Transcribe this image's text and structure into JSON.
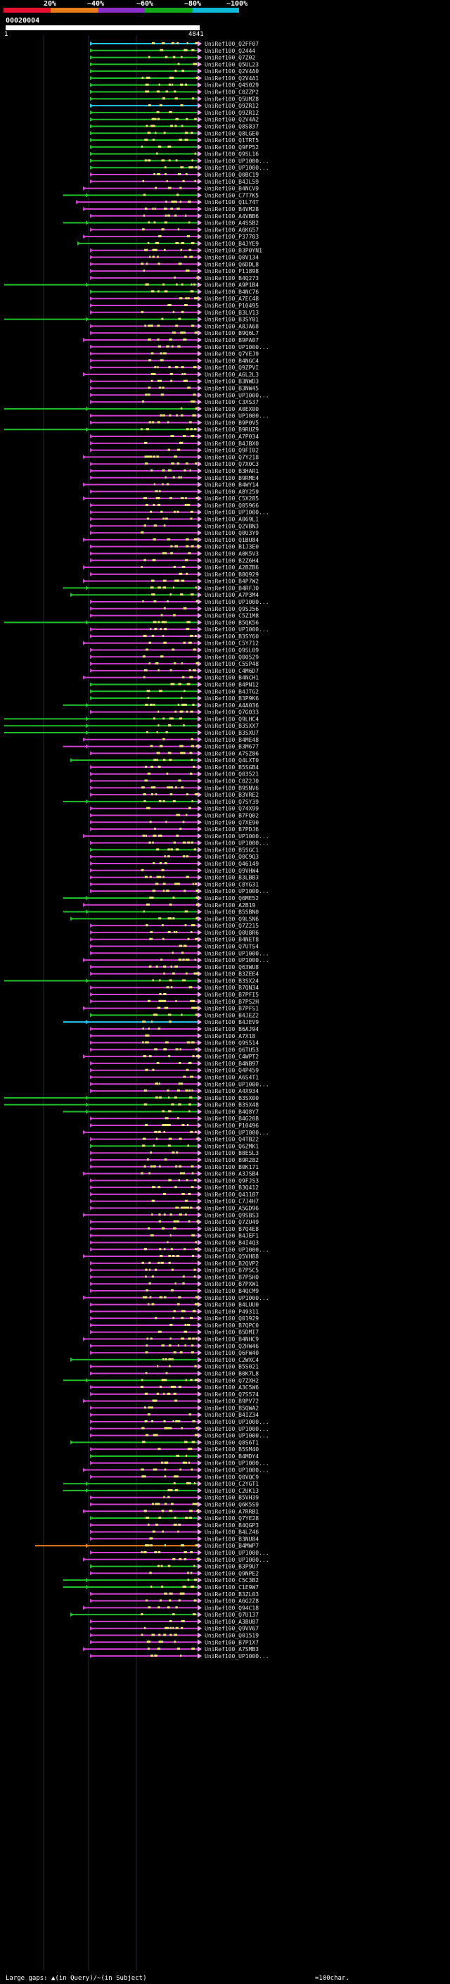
{
  "scale": {
    "labels": [
      "20%",
      "~40%",
      "~60%",
      "~80%",
      "~100%"
    ],
    "colors": [
      "#e8112d",
      "#e87b1a",
      "#8a2fc8",
      "#12a81a",
      "#10b8d8"
    ]
  },
  "query": {
    "id": "00020004",
    "start": "1",
    "end": "4841"
  },
  "colors": {
    "magenta": "#d040d0",
    "green": "#1fbf2a",
    "cyan": "#22c8f0",
    "orange": "#f0801a",
    "yellow": "#e8e870",
    "pink": "#f0a0f0"
  },
  "hits": [
    {
      "id": "UniRef100_Q2FF07",
      "c": "c",
      "s": 128
    },
    {
      "id": "UniRef100_Q2444",
      "c": "g",
      "s": 128
    },
    {
      "id": "UniRef100_Q7Z02",
      "c": "g",
      "s": 128
    },
    {
      "id": "UniRef100_Q5UL23",
      "c": "g",
      "s": 128
    },
    {
      "id": "UniRef100_Q2V4A0",
      "c": "g",
      "s": 128
    },
    {
      "id": "UniRef100_Q2V4A1",
      "c": "g",
      "s": 128
    },
    {
      "id": "UniRef100_Q4S029",
      "c": "g",
      "s": 128
    },
    {
      "id": "UniRef100_C0ZZP2",
      "c": "g",
      "s": 128
    },
    {
      "id": "UniRef100_Q5UMZ8",
      "c": "g",
      "s": 128
    },
    {
      "id": "UniRef100_Q9ZR12",
      "c": "c",
      "s": 128
    },
    {
      "id": "UniRef100_Q9ZR12",
      "c": "g",
      "s": 128
    },
    {
      "id": "UniRef100_Q2V4A2",
      "c": "g",
      "s": 128
    },
    {
      "id": "UniRef100_Q8S837",
      "c": "g",
      "s": 128
    },
    {
      "id": "UniRef100_Q8LGE0",
      "c": "g",
      "s": 128
    },
    {
      "id": "UniRef100_Q1TRT5",
      "c": "g",
      "s": 128
    },
    {
      "id": "UniRef100_Q9FP52",
      "c": "g",
      "s": 128
    },
    {
      "id": "UniRef100_Q9SL16",
      "c": "g",
      "s": 128
    },
    {
      "id": "UniRef100_UP1000...",
      "c": "g",
      "s": 128
    },
    {
      "id": "UniRef100_UP1000...",
      "c": "g",
      "s": 128
    },
    {
      "id": "UniRef100_Q0BC19",
      "c": "m",
      "s": 128
    },
    {
      "id": "UniRef100_B4JL59",
      "c": "m",
      "s": 128
    },
    {
      "id": "UniRef100_B4NCV9",
      "c": "m",
      "s": 118
    },
    {
      "id": "UniRef100_C7T7K5",
      "c": "g",
      "s": 90
    },
    {
      "id": "UniRef100_Q1L74T",
      "c": "m",
      "s": 108
    },
    {
      "id": "UniRef100_B4VM28",
      "c": "m",
      "s": 118
    },
    {
      "id": "UniRef100_A4VBB6",
      "c": "m",
      "s": 128
    },
    {
      "id": "UniRef100_A4SSB2",
      "c": "g",
      "s": 90
    },
    {
      "id": "UniRef100_A6KG57",
      "c": "m",
      "s": 128
    },
    {
      "id": "UniRef100_P37703",
      "c": "m",
      "s": 118
    },
    {
      "id": "UniRef100_B4JYE9",
      "c": "g",
      "s": 110
    },
    {
      "id": "UniRef100_B3P0YN1",
      "c": "m",
      "s": 128
    },
    {
      "id": "UniRef100_Q0V134",
      "c": "m",
      "s": 128
    },
    {
      "id": "UniRef100_Q6DDL8",
      "c": "m",
      "s": 128
    },
    {
      "id": "UniRef100_P11898",
      "c": "m",
      "s": 128
    },
    {
      "id": "UniRef100_B4Q273",
      "c": "m",
      "s": 128
    },
    {
      "id": "UniRef100_A9P1B4",
      "c": "g",
      "s": 6
    },
    {
      "id": "UniRef100_B4NC76",
      "c": "g",
      "s": 128
    },
    {
      "id": "UniRef100_A7EC48",
      "c": "m",
      "s": 128
    },
    {
      "id": "UniRef100_P10495",
      "c": "m",
      "s": 128
    },
    {
      "id": "UniRef100_B3LV13",
      "c": "m",
      "s": 128
    },
    {
      "id": "UniRef100_B3SY01",
      "c": "g",
      "s": 6
    },
    {
      "id": "UniRef100_A8JA68",
      "c": "m",
      "s": 128
    },
    {
      "id": "UniRef100_B9Q6L7",
      "c": "m",
      "s": 128
    },
    {
      "id": "UniRef100_B9PA07",
      "c": "m",
      "s": 118
    },
    {
      "id": "UniRef100_UP1000...",
      "c": "m",
      "s": 128
    },
    {
      "id": "UniRef100_Q7VEJ9",
      "c": "m",
      "s": 128
    },
    {
      "id": "UniRef100_B4NGC4",
      "c": "m",
      "s": 128
    },
    {
      "id": "UniRef100_Q9ZPVI",
      "c": "m",
      "s": 128
    },
    {
      "id": "UniRef100_A6L2L3",
      "c": "m",
      "s": 118
    },
    {
      "id": "UniRef100_B3NWD3",
      "c": "m",
      "s": 128
    },
    {
      "id": "UniRef100_B3NW45",
      "c": "m",
      "s": 128
    },
    {
      "id": "UniRef100_UP1000...",
      "c": "m",
      "s": 128
    },
    {
      "id": "UniRef100_C3XS37",
      "c": "m",
      "s": 128
    },
    {
      "id": "UniRef100_A0EX00",
      "c": "g",
      "s": 6
    },
    {
      "id": "UniRef100_UP1000...",
      "c": "m",
      "s": 128
    },
    {
      "id": "UniRef100_B9P0V5",
      "c": "m",
      "s": 128
    },
    {
      "id": "UniRef100_B9RUZ9",
      "c": "g",
      "s": 6
    },
    {
      "id": "UniRef100_A7P034",
      "c": "m",
      "s": 128
    },
    {
      "id": "UniRef100_B4JBX0",
      "c": "m",
      "s": 128
    },
    {
      "id": "UniRef100_Q9FI02",
      "c": "m",
      "s": 128
    },
    {
      "id": "UniRef100_Q7Y218",
      "c": "m",
      "s": 118
    },
    {
      "id": "UniRef100_Q7X0C3",
      "c": "m",
      "s": 128
    },
    {
      "id": "UniRef100_B3HAR1",
      "c": "m",
      "s": 128
    },
    {
      "id": "UniRef100_B9RME4",
      "c": "m",
      "s": 128
    },
    {
      "id": "UniRef100_B4WY14",
      "c": "m",
      "s": 118
    },
    {
      "id": "UniRef100_A8Y259",
      "c": "m",
      "s": 128
    },
    {
      "id": "UniRef100_C5X285",
      "c": "m",
      "s": 118
    },
    {
      "id": "UniRef100_Q05966",
      "c": "m",
      "s": 128
    },
    {
      "id": "UniRef100_UP1000...",
      "c": "m",
      "s": 128
    },
    {
      "id": "UniRef100_A069L1",
      "c": "m",
      "s": 128
    },
    {
      "id": "UniRef100_Q2VBN3",
      "c": "m",
      "s": 128
    },
    {
      "id": "UniRef100_Q0U3Y9",
      "c": "m",
      "s": 128
    },
    {
      "id": "UniRef100_Q1BU84",
      "c": "m",
      "s": 118
    },
    {
      "id": "UniRef100_B1J3E0",
      "c": "m",
      "s": 128
    },
    {
      "id": "UniRef100_A0K5V3",
      "c": "m",
      "s": 128
    },
    {
      "id": "UniRef100_B2Z6H4",
      "c": "m",
      "s": 128
    },
    {
      "id": "UniRef100_A2BZB6",
      "c": "m",
      "s": 118
    },
    {
      "id": "UniRef100_B8Q929",
      "c": "m",
      "s": 128
    },
    {
      "id": "UniRef100_B4P7W2",
      "c": "m",
      "s": 118
    },
    {
      "id": "UniRef100_B4RFJ0",
      "c": "g",
      "s": 90
    },
    {
      "id": "UniRef100_A7P3M4",
      "c": "g",
      "s": 100
    },
    {
      "id": "UniRef100_UP1000...",
      "c": "m",
      "s": 128
    },
    {
      "id": "UniRef100_Q9SJ56",
      "c": "m",
      "s": 128
    },
    {
      "id": "UniRef100_C5Z1M8",
      "c": "m",
      "s": 128
    },
    {
      "id": "UniRef100_B5QK56",
      "c": "g",
      "s": 6
    },
    {
      "id": "UniRef100_UP1000...",
      "c": "m",
      "s": 128
    },
    {
      "id": "UniRef100_B3SY60",
      "c": "m",
      "s": 128
    },
    {
      "id": "UniRef100_C5Y712",
      "c": "m",
      "s": 118
    },
    {
      "id": "UniRef100_Q9SL09",
      "c": "m",
      "s": 128
    },
    {
      "id": "UniRef100_Q00529",
      "c": "m",
      "s": 128
    },
    {
      "id": "UniRef100_C5SP48",
      "c": "m",
      "s": 128
    },
    {
      "id": "UniRef100_C4M6D7",
      "c": "m",
      "s": 128
    },
    {
      "id": "UniRef100_B4NCH1",
      "c": "m",
      "s": 118
    },
    {
      "id": "UniRef100_B4PN12",
      "c": "g",
      "s": 128
    },
    {
      "id": "UniRef100_B4JTG2",
      "c": "g",
      "s": 128
    },
    {
      "id": "UniRef100_B3P9K6",
      "c": "g",
      "s": 128
    },
    {
      "id": "UniRef100_A4A036",
      "c": "g",
      "s": 90
    },
    {
      "id": "UniRef100_Q7G033",
      "c": "m",
      "s": 128
    },
    {
      "id": "UniRef100_Q9LHC4",
      "c": "g",
      "s": 6
    },
    {
      "id": "UniRef100_B3SXX7",
      "c": "g",
      "s": 6
    },
    {
      "id": "UniRef100_B3SXU7",
      "c": "g",
      "s": 6
    },
    {
      "id": "UniRef100_B4ME48",
      "c": "m",
      "s": 118
    },
    {
      "id": "UniRef100_B3M677",
      "c": "m",
      "s": 90
    },
    {
      "id": "UniRef100_A7SZ86",
      "c": "m",
      "s": 128
    },
    {
      "id": "UniRef100_Q4LXT0",
      "c": "g",
      "s": 100
    },
    {
      "id": "UniRef100_B5SGB4",
      "c": "m",
      "s": 128
    },
    {
      "id": "UniRef100_Q03521",
      "c": "m",
      "s": 128
    },
    {
      "id": "UniRef100_C0Z2J0",
      "c": "m",
      "s": 128
    },
    {
      "id": "UniRef100_B9SNV6",
      "c": "m",
      "s": 128
    },
    {
      "id": "UniRef100_B3VRE2",
      "c": "m",
      "s": 128
    },
    {
      "id": "UniRef100_Q7SY39",
      "c": "g",
      "s": 90
    },
    {
      "id": "UniRef100_Q74X99",
      "c": "m",
      "s": 128
    },
    {
      "id": "UniRef100_B7FQ02",
      "c": "m",
      "s": 128
    },
    {
      "id": "UniRef100_Q7XE90",
      "c": "m",
      "s": 128
    },
    {
      "id": "UniRef100_B7PDJ6",
      "c": "m",
      "s": 128
    },
    {
      "id": "UniRef100_UP1000...",
      "c": "m",
      "s": 118
    },
    {
      "id": "UniRef100_UP1000...",
      "c": "m",
      "s": 128
    },
    {
      "id": "UniRef100_B5SGC1",
      "c": "g",
      "s": 128
    },
    {
      "id": "UniRef100_Q0C9Q3",
      "c": "m",
      "s": 128
    },
    {
      "id": "UniRef100_Q46149",
      "c": "m",
      "s": 128
    },
    {
      "id": "UniRef100_Q9VHW4",
      "c": "m",
      "s": 128
    },
    {
      "id": "UniRef100_B3LBB3",
      "c": "m",
      "s": 128
    },
    {
      "id": "UniRef100_C8YG31",
      "c": "m",
      "s": 128
    },
    {
      "id": "UniRef100_UP1000...",
      "c": "m",
      "s": 128
    },
    {
      "id": "UniRef100_Q6ME52",
      "c": "g",
      "s": 90
    },
    {
      "id": "UniRef100_A2B19",
      "c": "m",
      "s": 118
    },
    {
      "id": "UniRef100_B5SBN0",
      "c": "g",
      "s": 90
    },
    {
      "id": "UniRef100_Q9LSN6",
      "c": "g",
      "s": 100
    },
    {
      "id": "UniRef100_Q7Z215",
      "c": "m",
      "s": 128
    },
    {
      "id": "UniRef100_Q0U8R6",
      "c": "m",
      "s": 128
    },
    {
      "id": "UniRef100_B4NET8",
      "c": "m",
      "s": 128
    },
    {
      "id": "UniRef100_Q7UTS4",
      "c": "m",
      "s": 128
    },
    {
      "id": "UniRef100_UP1000...",
      "c": "m",
      "s": 128
    },
    {
      "id": "UniRef100_UP1000...",
      "c": "m",
      "s": 118
    },
    {
      "id": "UniRef100_Q63WU8",
      "c": "m",
      "s": 128
    },
    {
      "id": "UniRef100_B3ZEE4",
      "c": "m",
      "s": 128
    },
    {
      "id": "UniRef100_B3SX24",
      "c": "g",
      "s": 6
    },
    {
      "id": "UniRef100_B7QN34",
      "c": "m",
      "s": 128
    },
    {
      "id": "UniRef100_B7PFI5",
      "c": "m",
      "s": 128
    },
    {
      "id": "UniRef100_B7PS2H",
      "c": "m",
      "s": 128
    },
    {
      "id": "UniRef100_B7PFS1",
      "c": "m",
      "s": 118
    },
    {
      "id": "UniRef100_B4JEZ2",
      "c": "g",
      "s": 128
    },
    {
      "id": "UniRef100_B4JEV9",
      "c": "c",
      "s": 90
    },
    {
      "id": "UniRef100_B6AJ94",
      "c": "m",
      "s": 128
    },
    {
      "id": "UniRef100_A7X18",
      "c": "m",
      "s": 128
    },
    {
      "id": "UniRef100_Q9S514",
      "c": "m",
      "s": 128
    },
    {
      "id": "UniRef100_Q6TU53",
      "c": "m",
      "s": 128
    },
    {
      "id": "UniRef100_C4WPT2",
      "c": "m",
      "s": 118
    },
    {
      "id": "UniRef100_B4NB97",
      "c": "m",
      "s": 128
    },
    {
      "id": "UniRef100_Q4P459",
      "c": "m",
      "s": 128
    },
    {
      "id": "UniRef100_A6S4T1",
      "c": "m",
      "s": 128
    },
    {
      "id": "UniRef100_UP1000...",
      "c": "m",
      "s": 128
    },
    {
      "id": "UniRef100_A4X934",
      "c": "m",
      "s": 128
    },
    {
      "id": "UniRef100_B3SX00",
      "c": "g",
      "s": 6
    },
    {
      "id": "UniRef100_B3SX48",
      "c": "g",
      "s": 6
    },
    {
      "id": "UniRef100_B4Q8Y7",
      "c": "g",
      "s": 90
    },
    {
      "id": "UniRef100_B4G208",
      "c": "m",
      "s": 128
    },
    {
      "id": "UniRef100_P10496",
      "c": "m",
      "s": 128
    },
    {
      "id": "UniRef100_UP1000...",
      "c": "m",
      "s": 118
    },
    {
      "id": "UniRef100_Q4TB22",
      "c": "m",
      "s": 128
    },
    {
      "id": "UniRef100_Q6ZMK1",
      "c": "g",
      "s": 128
    },
    {
      "id": "UniRef100_B8ESL3",
      "c": "m",
      "s": 128
    },
    {
      "id": "UniRef100_B9R282",
      "c": "m",
      "s": 128
    },
    {
      "id": "UniRef100_B0K171",
      "c": "m",
      "s": 128
    },
    {
      "id": "UniRef100_A3JSB4",
      "c": "m",
      "s": 118
    },
    {
      "id": "UniRef100_Q9FJS3",
      "c": "m",
      "s": 128
    },
    {
      "id": "UniRef100_B3Q412",
      "c": "m",
      "s": 128
    },
    {
      "id": "UniRef100_Q41187",
      "c": "m",
      "s": 128
    },
    {
      "id": "UniRef100_C7J4H7",
      "c": "m",
      "s": 128
    },
    {
      "id": "UniRef100_A5GD96",
      "c": "m",
      "s": 128
    },
    {
      "id": "UniRef100_Q9SBS3",
      "c": "m",
      "s": 118
    },
    {
      "id": "UniRef100_Q7ZU49",
      "c": "m",
      "s": 128
    },
    {
      "id": "UniRef100_B7Q4E8",
      "c": "m",
      "s": 128
    },
    {
      "id": "UniRef100_B4JEF1",
      "c": "m",
      "s": 128
    },
    {
      "id": "UniRef100_B4I4Q3",
      "c": "m",
      "s": 128
    },
    {
      "id": "UniRef100_UP1000...",
      "c": "m",
      "s": 128
    },
    {
      "id": "UniRef100_Q5VH88",
      "c": "m",
      "s": 118
    },
    {
      "id": "UniRef100_B2QVP2",
      "c": "m",
      "s": 128
    },
    {
      "id": "UniRef100_B7P5C5",
      "c": "m",
      "s": 128
    },
    {
      "id": "UniRef100_B7P5H0",
      "c": "m",
      "s": 128
    },
    {
      "id": "UniRef100_B7PXW1",
      "c": "m",
      "s": 128
    },
    {
      "id": "UniRef100_B4QCM9",
      "c": "m",
      "s": 128
    },
    {
      "id": "UniRef100_UP1000...",
      "c": "m",
      "s": 118
    },
    {
      "id": "UniRef100_B4LUU0",
      "c": "m",
      "s": 128
    },
    {
      "id": "UniRef100_P49311",
      "c": "m",
      "s": 128
    },
    {
      "id": "UniRef100_Q01929",
      "c": "m",
      "s": 128
    },
    {
      "id": "UniRef100_B7QPC0",
      "c": "m",
      "s": 128
    },
    {
      "id": "UniRef100_B5DMI7",
      "c": "m",
      "s": 128
    },
    {
      "id": "UniRef100_B4NHC9",
      "c": "m",
      "s": 118
    },
    {
      "id": "UniRef100_Q2HW46",
      "c": "m",
      "s": 128
    },
    {
      "id": "UniRef100_Q6FW40",
      "c": "m",
      "s": 128
    },
    {
      "id": "UniRef100_C2WXC4",
      "c": "g",
      "s": 100
    },
    {
      "id": "UniRef100_B5S021",
      "c": "m",
      "s": 128
    },
    {
      "id": "UniRef100_B0K7L8",
      "c": "m",
      "s": 128
    },
    {
      "id": "UniRef100_Q7ZXH2",
      "c": "g",
      "s": 90
    },
    {
      "id": "UniRef100_A3C5W6",
      "c": "m",
      "s": 128
    },
    {
      "id": "UniRef100_Q7S574",
      "c": "m",
      "s": 128
    },
    {
      "id": "UniRef100_B9PV72",
      "c": "m",
      "s": 118
    },
    {
      "id": "UniRef100_B5QWA2",
      "c": "m",
      "s": 128
    },
    {
      "id": "UniRef100_B4IZ34",
      "c": "m",
      "s": 128
    },
    {
      "id": "UniRef100_UP1000...",
      "c": "m",
      "s": 128
    },
    {
      "id": "UniRef100_UP1000...",
      "c": "m",
      "s": 128
    },
    {
      "id": "UniRef100_UP1000...",
      "c": "m",
      "s": 128
    },
    {
      "id": "UniRef100_Q8S6T1",
      "c": "g",
      "s": 100
    },
    {
      "id": "UniRef100_B5SM40",
      "c": "m",
      "s": 128
    },
    {
      "id": "UniRef100_B4MDY4",
      "c": "g",
      "s": 128
    },
    {
      "id": "UniRef100_UP1000...",
      "c": "m",
      "s": 128
    },
    {
      "id": "UniRef100_UP1000...",
      "c": "m",
      "s": 118
    },
    {
      "id": "UniRef100_Q0VQC9",
      "c": "m",
      "s": 128
    },
    {
      "id": "UniRef100_C2YGT1",
      "c": "g",
      "s": 90
    },
    {
      "id": "UniRef100_C2UK13",
      "c": "g",
      "s": 90
    },
    {
      "id": "UniRef100_B5VH39",
      "c": "m",
      "s": 128
    },
    {
      "id": "UniRef100_Q6K5S9",
      "c": "m",
      "s": 128
    },
    {
      "id": "UniRef100_A7RRB1",
      "c": "m",
      "s": 118
    },
    {
      "id": "UniRef100_Q7YE28",
      "c": "g",
      "s": 128
    },
    {
      "id": "UniRef100_B4QGP3",
      "c": "m",
      "s": 128
    },
    {
      "id": "UniRef100_B4LZ46",
      "c": "m",
      "s": 128
    },
    {
      "id": "UniRef100_B3NU84",
      "c": "m",
      "s": 128
    },
    {
      "id": "UniRef100_B4MWP7",
      "c": "o",
      "s": 50
    },
    {
      "id": "UniRef100_UP1000...",
      "c": "m",
      "s": 128
    },
    {
      "id": "UniRef100_UP1000...",
      "c": "m",
      "s": 118
    },
    {
      "id": "UniRef100_B3P9U7",
      "c": "g",
      "s": 128
    },
    {
      "id": "UniRef100_Q9NPE2",
      "c": "m",
      "s": 128
    },
    {
      "id": "UniRef100_C5C3B2",
      "c": "g",
      "s": 90
    },
    {
      "id": "UniRef100_C1E9W7",
      "c": "g",
      "s": 90
    },
    {
      "id": "UniRef100_B3ZL03",
      "c": "m",
      "s": 128
    },
    {
      "id": "UniRef100_A6G2Z8",
      "c": "m",
      "s": 128
    },
    {
      "id": "UniRef100_Q94C18",
      "c": "m",
      "s": 118
    },
    {
      "id": "UniRef100_Q7U137",
      "c": "g",
      "s": 100
    },
    {
      "id": "UniRef100_A3BU87",
      "c": "m",
      "s": 128
    },
    {
      "id": "UniRef100_Q9VV67",
      "c": "m",
      "s": 128
    },
    {
      "id": "UniRef100_Q01519",
      "c": "m",
      "s": 128
    },
    {
      "id": "UniRef100_B7P1X7",
      "c": "m",
      "s": 128
    },
    {
      "id": "UniRef100_A7SMB3",
      "c": "m",
      "s": 118
    },
    {
      "id": "UniRef100_UP1000...",
      "c": "m",
      "s": 128
    }
  ],
  "footer": {
    "gaps": "Large gaps: ▲(in Query)/~(in Subject)",
    "legend": "=100char."
  }
}
